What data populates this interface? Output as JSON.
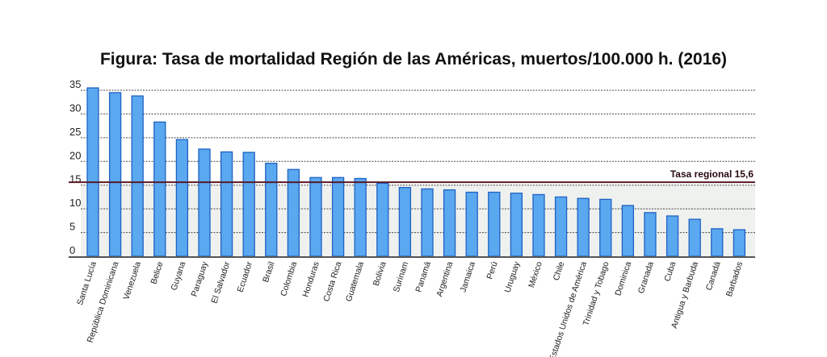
{
  "chart_data": {
    "type": "bar",
    "title": "Figura: Tasa de mortalidad Región de las Américas, muertos/100.000 h. (2016)",
    "xlabel": "",
    "ylabel": "",
    "ylim": [
      0,
      35
    ],
    "yticks": [
      0,
      5,
      10,
      15,
      20,
      25,
      30,
      35
    ],
    "grid": true,
    "categories": [
      "Santa Lucía",
      "República Dominicana",
      "Venezuela",
      "Belice",
      "Guyana",
      "Paraguay",
      "El Salvador",
      "Ecuador",
      "Brasil",
      "Colombia",
      "Honduras",
      "Costa Rica",
      "Guatemala",
      "Bolivia",
      "Surinam",
      "Panamá",
      "Argentina",
      "Jamaica",
      "Perú",
      "Uruguay",
      "México",
      "Chile",
      "Estados Unidos de América",
      "Trinidad y Tobago",
      "Dominica",
      "Granada",
      "Cuba",
      "Antigua y Barbuda",
      "Canadá",
      "Barbados"
    ],
    "values": [
      35.5,
      34.5,
      33.8,
      28.3,
      24.6,
      22.6,
      22.0,
      21.9,
      19.6,
      18.3,
      16.6,
      16.6,
      16.4,
      15.4,
      14.5,
      14.2,
      14.0,
      13.5,
      13.5,
      13.3,
      13.0,
      12.5,
      12.2,
      12.0,
      10.7,
      9.2,
      8.5,
      7.8,
      5.8,
      5.6
    ],
    "reference_line": {
      "value": 15.6,
      "label": "Tasa regional 15,6",
      "color": "#5a1a24"
    },
    "bar_color": "#5aa8ef",
    "bar_edge_color": "#1f62c4"
  }
}
